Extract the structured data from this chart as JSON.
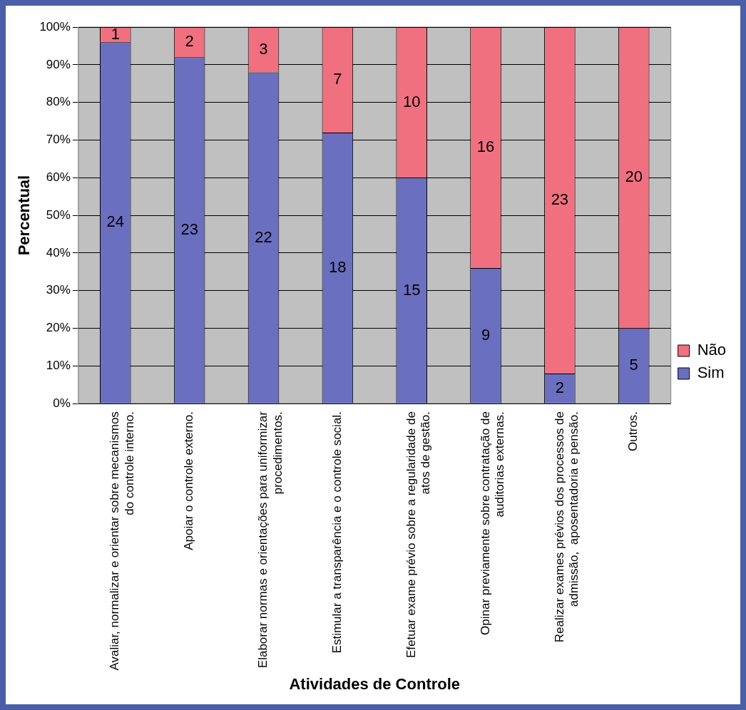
{
  "chart_data": {
    "type": "bar",
    "stacked": true,
    "xlabel": "Atividades de Controle",
    "ylabel": "Percentual",
    "categories": [
      "Avaliar, normalizar e orientar sobre mecanismos do controle interno.",
      "Apoiar o controle externo.",
      "Elaborar normas e orientações para uniformizar procedimentos.",
      "Estimular a transparência e o controle social.",
      "Efetuar exame prévio sobre a regularidade de atos de gestão.",
      "Opinar previamente sobre contratação de auditorias externas.",
      "Realizar exames prévios dos processos de admissão,  aposentadoria e pensão.",
      "Outros."
    ],
    "series": [
      {
        "name": "Sim",
        "color": "#6a6fc0",
        "values": [
          96,
          92,
          88,
          72,
          60,
          36,
          8,
          20
        ]
      },
      {
        "name": "Não",
        "color": "#f07080",
        "values": [
          4,
          8,
          12,
          28,
          40,
          64,
          92,
          80
        ]
      }
    ],
    "annotations": [
      "24",
      "1",
      "23",
      "2",
      "22",
      "3",
      "18",
      "7",
      "15",
      "10",
      "9",
      "16",
      "2",
      "23",
      "5",
      "20"
    ],
    "ylim": [
      0,
      100
    ],
    "yticks": [
      {
        "value": 0,
        "label": "0%"
      },
      {
        "value": 10,
        "label": "10%"
      },
      {
        "value": 20,
        "label": "20%"
      },
      {
        "value": 30,
        "label": "30%"
      },
      {
        "value": 40,
        "label": "40%"
      },
      {
        "value": 50,
        "label": "50%"
      },
      {
        "value": 60,
        "label": "60%"
      },
      {
        "value": 70,
        "label": "70%"
      },
      {
        "value": 80,
        "label": "80%"
      },
      {
        "value": 90,
        "label": "90%"
      },
      {
        "value": 100,
        "label": "100%"
      }
    ],
    "grid": "y",
    "legend": "right"
  }
}
